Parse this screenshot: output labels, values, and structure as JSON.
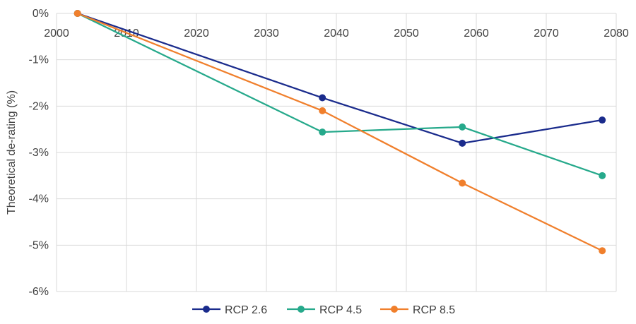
{
  "chart_data": {
    "type": "line",
    "ylabel": "Theoretical de-rating (%)",
    "xlim": [
      2000,
      2080
    ],
    "ylim": [
      -6,
      0
    ],
    "x_ticks": [
      2000,
      2010,
      2020,
      2030,
      2040,
      2050,
      2060,
      2070,
      2080
    ],
    "x_tick_labels": [
      "2000",
      "2010",
      "2020",
      "2030",
      "2040",
      "2050",
      "2060",
      "2070",
      "2080"
    ],
    "y_ticks": [
      0,
      -1,
      -2,
      -3,
      -4,
      -5,
      -6
    ],
    "y_tick_labels": [
      "0%",
      "-1%",
      "-2%",
      "-3%",
      "-4%",
      "-5%",
      "-6%"
    ],
    "grid": true,
    "legend_position": "bottom",
    "series": [
      {
        "name": "RCP 2.6",
        "color": "#1a2b8c",
        "x": [
          2003,
          2038,
          2058,
          2078
        ],
        "values": [
          0,
          -1.82,
          -2.8,
          -2.3
        ]
      },
      {
        "name": "RCP 4.5",
        "color": "#26a98b",
        "x": [
          2003,
          2038,
          2058,
          2078
        ],
        "values": [
          0,
          -2.56,
          -2.45,
          -3.5
        ]
      },
      {
        "name": "RCP 8.5",
        "color": "#f07f2c",
        "x": [
          2003,
          2038,
          2058,
          2078
        ],
        "values": [
          0,
          -2.1,
          -3.66,
          -5.12
        ]
      }
    ]
  }
}
